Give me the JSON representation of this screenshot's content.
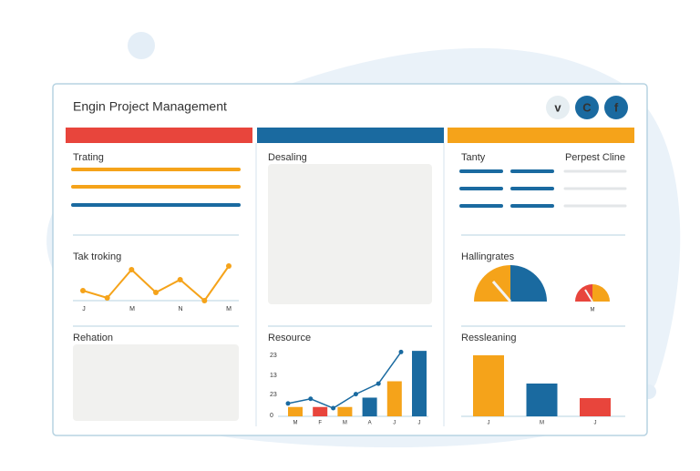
{
  "header": {
    "title": "Engin Project Management",
    "icons": [
      "v",
      "C",
      "f"
    ]
  },
  "columns": [
    {
      "title": "Trating",
      "line_chart": {
        "type": "line",
        "title": "Tak troking",
        "x": [
          0,
          1,
          2,
          3,
          4,
          5,
          6
        ],
        "values": [
          2.75,
          0.75,
          8.5,
          2.25,
          5.75,
          0,
          9.5
        ],
        "xlim": [
          0,
          6
        ],
        "ylim": [
          0,
          10
        ],
        "x_labels": [
          "J",
          "M",
          "N",
          "M"
        ],
        "color": "#f5a31a"
      },
      "panel_title": "Rehation"
    },
    {
      "title": "Desaling",
      "chart": {
        "type": "bar",
        "title": "Resource",
        "categories": [
          "M",
          "F",
          "M",
          "A",
          "J",
          "J"
        ],
        "values": [
          4,
          4,
          4,
          8,
          15,
          28
        ],
        "colors": [
          "#f5a31a",
          "#e8453c",
          "#f5a31a",
          "#1a6aa0",
          "#f5a31a",
          "#1a6aa0"
        ],
        "line_values": [
          5.5,
          7.5,
          3.5,
          9.5,
          14,
          27.5
        ],
        "line_color": "#1a6aa0",
        "ylim": [
          0,
          30
        ],
        "y_labels": [
          "23",
          "13",
          "23",
          "0"
        ]
      }
    },
    {
      "title": "Tanty",
      "title_right": "Perpest Cline",
      "gauge_title": "Hallingrates",
      "gauge_label": "M",
      "chart": {
        "type": "bar",
        "title": "Ressleaning",
        "categories": [
          "J",
          "M",
          "J"
        ],
        "values": [
          67,
          36,
          20
        ],
        "colors": [
          "#f5a31a",
          "#1a6aa0",
          "#e8453c"
        ],
        "ylim": [
          0,
          70
        ]
      }
    }
  ]
}
